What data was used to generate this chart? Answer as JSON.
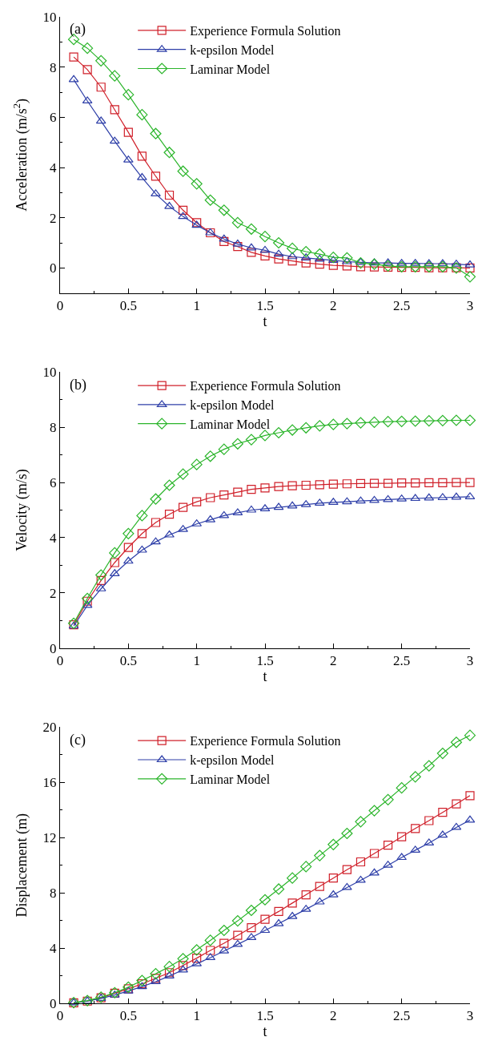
{
  "chart_data": [
    {
      "type": "line",
      "annotations": [
        "(a)"
      ],
      "xlabel": "t",
      "ylabel": "Acceleration (m/s$^{2}$)",
      "x": [
        0.1,
        0.2,
        0.3,
        0.4,
        0.5,
        0.6,
        0.7,
        0.8,
        0.9,
        1.0,
        1.1,
        1.2,
        1.3,
        1.4,
        1.5,
        1.6,
        1.7,
        1.8,
        1.9,
        2.0,
        2.1,
        2.2,
        2.3,
        2.4,
        2.5,
        2.6,
        2.7,
        2.8,
        2.9,
        3.0
      ],
      "xlim": [
        0,
        3
      ],
      "xticks": [
        0,
        0.5,
        1,
        1.5,
        2,
        2.5,
        3
      ],
      "ylim": [
        -1,
        10
      ],
      "yticks": [
        0,
        2,
        4,
        6,
        8,
        10
      ],
      "legend": "top",
      "line_style": "solid",
      "series": [
        {
          "name": "Experience Formula Solution",
          "color": "#d0202a",
          "marker": "square",
          "values": [
            8.4,
            7.9,
            7.2,
            6.3,
            5.4,
            4.45,
            3.65,
            2.9,
            2.3,
            1.8,
            1.4,
            1.05,
            0.85,
            0.62,
            0.48,
            0.36,
            0.28,
            0.2,
            0.15,
            0.1,
            0.08,
            0.05,
            0.04,
            0.03,
            0.02,
            0.02,
            0.01,
            0.01,
            0.01,
            0.0
          ]
        },
        {
          "name": "k-epsilon Model",
          "color": "#2e3fa8",
          "marker": "triangle",
          "values": [
            7.5,
            6.65,
            5.85,
            5.05,
            4.3,
            3.6,
            2.95,
            2.45,
            2.05,
            1.7,
            1.4,
            1.15,
            0.95,
            0.8,
            0.7,
            0.55,
            0.45,
            0.4,
            0.35,
            0.3,
            0.25,
            0.22,
            0.2,
            0.2,
            0.18,
            0.18,
            0.17,
            0.17,
            0.15,
            0.12
          ]
        },
        {
          "name": "Laminar Model",
          "color": "#2bb52b",
          "marker": "diamond",
          "values": [
            9.1,
            8.75,
            8.25,
            7.65,
            6.9,
            6.1,
            5.35,
            4.6,
            3.85,
            3.35,
            2.7,
            2.3,
            1.8,
            1.55,
            1.25,
            1.0,
            0.78,
            0.65,
            0.55,
            0.42,
            0.4,
            0.2,
            0.15,
            0.08,
            0.05,
            0.05,
            0.05,
            0.05,
            0.0,
            -0.35
          ]
        }
      ]
    },
    {
      "type": "line",
      "annotations": [
        "(b)"
      ],
      "xlabel": "t",
      "ylabel": "Velocity (m/s)",
      "x": [
        0.1,
        0.2,
        0.3,
        0.4,
        0.5,
        0.6,
        0.7,
        0.8,
        0.9,
        1.0,
        1.1,
        1.2,
        1.3,
        1.4,
        1.5,
        1.6,
        1.7,
        1.8,
        1.9,
        2.0,
        2.1,
        2.2,
        2.3,
        2.4,
        2.5,
        2.6,
        2.7,
        2.8,
        2.9,
        3.0
      ],
      "xlim": [
        0,
        3
      ],
      "xticks": [
        0,
        0.5,
        1,
        1.5,
        2,
        2.5,
        3
      ],
      "ylim": [
        0,
        10
      ],
      "yticks": [
        0,
        2,
        4,
        6,
        8,
        10
      ],
      "legend": "top",
      "line_style": "solid",
      "series": [
        {
          "name": "Experience Formula Solution",
          "color": "#d0202a",
          "marker": "square",
          "values": [
            0.85,
            1.7,
            2.45,
            3.1,
            3.65,
            4.15,
            4.55,
            4.85,
            5.1,
            5.3,
            5.45,
            5.55,
            5.65,
            5.75,
            5.8,
            5.85,
            5.88,
            5.9,
            5.92,
            5.94,
            5.95,
            5.96,
            5.97,
            5.97,
            5.98,
            5.98,
            5.99,
            5.99,
            6.0,
            6.0
          ]
        },
        {
          "name": "k-epsilon Model",
          "color": "#2e3fa8",
          "marker": "triangle",
          "values": [
            0.8,
            1.55,
            2.15,
            2.7,
            3.15,
            3.55,
            3.85,
            4.1,
            4.3,
            4.5,
            4.65,
            4.8,
            4.9,
            5.0,
            5.05,
            5.1,
            5.15,
            5.2,
            5.25,
            5.28,
            5.3,
            5.33,
            5.35,
            5.38,
            5.4,
            5.42,
            5.44,
            5.45,
            5.47,
            5.48
          ]
        },
        {
          "name": "Laminar Model",
          "color": "#2bb52b",
          "marker": "diamond",
          "values": [
            0.9,
            1.8,
            2.65,
            3.45,
            4.15,
            4.8,
            5.4,
            5.9,
            6.3,
            6.65,
            6.95,
            7.2,
            7.4,
            7.55,
            7.7,
            7.8,
            7.9,
            7.98,
            8.05,
            8.1,
            8.13,
            8.16,
            8.18,
            8.2,
            8.21,
            8.22,
            8.23,
            8.24,
            8.25,
            8.25
          ]
        }
      ]
    },
    {
      "type": "line",
      "annotations": [
        "(c)"
      ],
      "xlabel": "t",
      "ylabel": "Displacement (m)",
      "x": [
        0.1,
        0.2,
        0.3,
        0.4,
        0.5,
        0.6,
        0.7,
        0.8,
        0.9,
        1.0,
        1.1,
        1.2,
        1.3,
        1.4,
        1.5,
        1.6,
        1.7,
        1.8,
        1.9,
        2.0,
        2.1,
        2.2,
        2.3,
        2.4,
        2.5,
        2.6,
        2.7,
        2.8,
        2.9,
        3.0
      ],
      "xlim": [
        0,
        3
      ],
      "xticks": [
        0,
        0.5,
        1,
        1.5,
        2,
        2.5,
        3
      ],
      "ylim": [
        0,
        20
      ],
      "yticks": [
        0,
        4,
        8,
        12,
        16,
        20
      ],
      "legend": "top",
      "line_style": "solid",
      "series": [
        {
          "name": "Experience Formula Solution",
          "color": "#d0202a",
          "marker": "square",
          "values": [
            0.04,
            0.16,
            0.4,
            0.73,
            1.05,
            1.41,
            1.81,
            2.22,
            2.74,
            3.27,
            3.83,
            4.35,
            4.92,
            5.48,
            6.09,
            6.65,
            7.26,
            7.86,
            8.47,
            9.07,
            9.68,
            10.24,
            10.85,
            11.45,
            12.06,
            12.66,
            13.23,
            13.83,
            14.44,
            15.04
          ]
        },
        {
          "name": "k-epsilon Model",
          "color": "#2e3fa8",
          "marker": "triangle",
          "values": [
            0.04,
            0.16,
            0.36,
            0.6,
            0.89,
            1.21,
            1.57,
            1.98,
            2.42,
            2.86,
            3.31,
            3.79,
            4.27,
            4.76,
            5.28,
            5.77,
            6.29,
            6.81,
            7.34,
            7.86,
            8.39,
            8.91,
            9.44,
            10.0,
            10.56,
            11.09,
            11.61,
            12.18,
            12.74,
            13.27
          ]
        },
        {
          "name": "Laminar Model",
          "color": "#2bb52b",
          "marker": "diamond",
          "values": [
            0.05,
            0.2,
            0.44,
            0.77,
            1.17,
            1.65,
            2.14,
            2.66,
            3.23,
            3.87,
            4.56,
            5.28,
            5.97,
            6.73,
            7.5,
            8.27,
            9.07,
            9.9,
            10.7,
            11.5,
            12.3,
            13.15,
            13.95,
            14.75,
            15.6,
            16.4,
            17.2,
            18.1,
            18.9,
            19.4
          ]
        }
      ]
    }
  ]
}
